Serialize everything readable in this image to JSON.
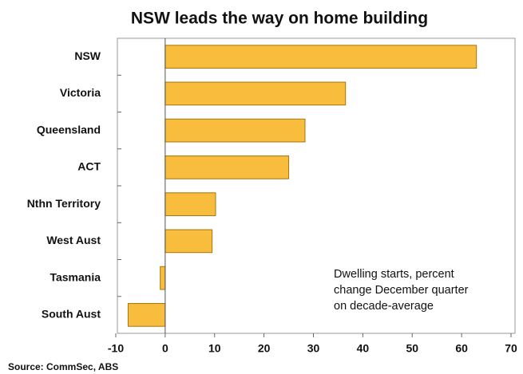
{
  "chart_data": {
    "type": "bar",
    "orientation": "horizontal",
    "title": "NSW leads the way on home building",
    "categories": [
      "NSW",
      "Victoria",
      "Queensland",
      "ACT",
      "Nthn Territory",
      "West Aust",
      "Tasmania",
      "South Aust"
    ],
    "values": [
      63,
      36.5,
      28.3,
      25,
      10.2,
      9.5,
      -1,
      -7.5
    ],
    "color": "#f8bd3c",
    "xlim": [
      -10,
      70
    ],
    "xticks": [
      -10,
      0,
      10,
      20,
      30,
      40,
      50,
      60,
      70
    ],
    "grid": false,
    "annotation": [
      "Dwelling starts, percent",
      "change December quarter",
      "on decade-average"
    ],
    "source": "Source: CommSec, ABS"
  }
}
